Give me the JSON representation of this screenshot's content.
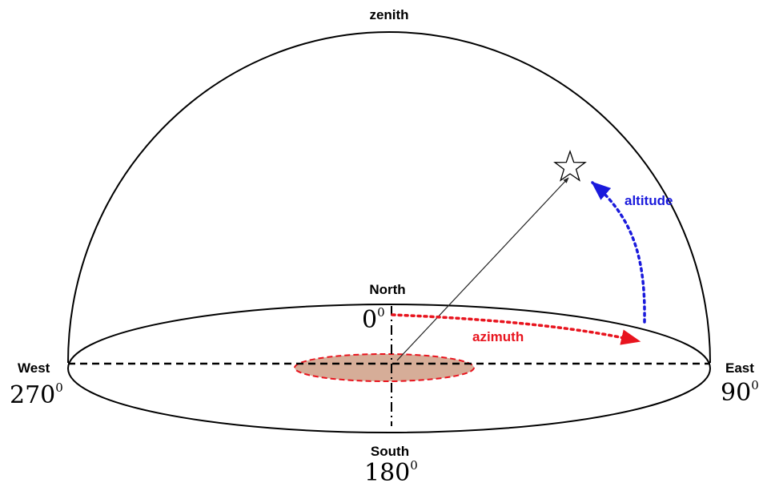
{
  "labels": {
    "zenith": "zenith",
    "north": "North",
    "south": "South",
    "east": "East",
    "west": "West",
    "altitude": "altitude",
    "azimuth": "azimuth"
  },
  "degrees": {
    "north": "0",
    "east": "90",
    "south": "180",
    "west": "270",
    "superscript": "0"
  },
  "colors": {
    "altitude": "#1a1adc",
    "azimuth": "#e8141e",
    "observer_fill": "#d6ad98",
    "observer_stroke": "#e8141e",
    "lines": "#000000"
  },
  "icons": {
    "target": "star-outline-icon"
  }
}
